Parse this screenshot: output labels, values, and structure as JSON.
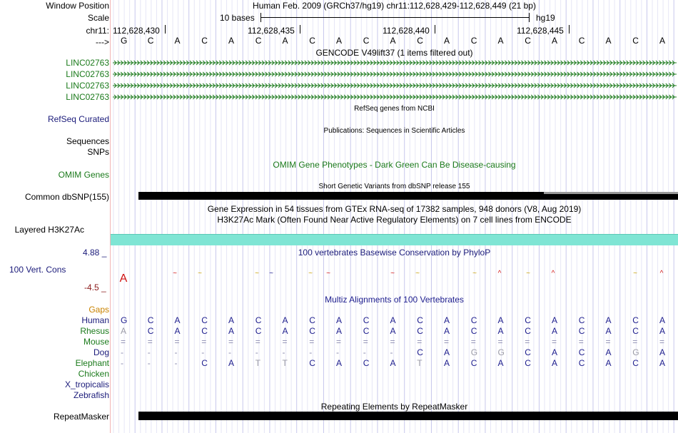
{
  "header": {
    "window_position_label": "Window Position",
    "window_position_value": "Human Feb. 2009 (GRCh37/hg19)   chr11:112,628,429-112,628,449 (21 bp)",
    "scale_label": "Scale",
    "scale_bases": "10 bases",
    "scale_assembly": "hg19",
    "chrom_label": "chr11:",
    "coords": [
      "112,628,430",
      "112,628,435",
      "112,628,440",
      "112,628,445"
    ],
    "strand_label": "--->",
    "bases": [
      "G",
      "C",
      "A",
      "C",
      "A",
      "C",
      "A",
      "C",
      "A",
      "C",
      "A",
      "C",
      "A",
      "C",
      "A",
      "C",
      "A",
      "C",
      "A",
      "C",
      "A"
    ]
  },
  "tracks": {
    "gencode": {
      "title": "GENCODE V49lift37 (1 items filtered out)",
      "genes": [
        "LINC02763",
        "LINC02763",
        "LINC02763",
        "LINC02763"
      ]
    },
    "refseq": {
      "label": "RefSeq Curated",
      "title": "RefSeq genes from NCBI"
    },
    "sequences": {
      "label": "Sequences",
      "title": "Publications: Sequences in Scientific Articles"
    },
    "snps": {
      "label": "SNPs"
    },
    "omim": {
      "label": "OMIM Genes",
      "title": "OMIM Gene Phenotypes - Dark Green Can Be Disease-causing"
    },
    "dbsnp": {
      "label": "Common dbSNP(155)",
      "title": "Short Genetic Variants from dbSNP release 155"
    },
    "gtex": {
      "title": "Gene Expression in 54 tissues from GTEx RNA-seq of 17382 samples, 948 donors (V8, Aug 2019)"
    },
    "h3k27ac": {
      "label": "Layered H3K27Ac",
      "title": "H3K27Ac Mark (Often Found Near Active Regulatory Elements) on 7 cell lines from ENCODE"
    },
    "cons": {
      "label": "100 Vert. Cons",
      "max": "4.88 _",
      "min": "-4.5 _",
      "title": "100 vertebrates Basewise Conservation by PhyloP"
    },
    "multiz": {
      "title": "Multiz Alignments of 100 Vertebrates",
      "gaps_label": "Gaps",
      "species": [
        {
          "name": "Human",
          "seq": [
            "G",
            "C",
            "A",
            "C",
            "A",
            "C",
            "A",
            "C",
            "A",
            "C",
            "A",
            "C",
            "A",
            "C",
            "A",
            "C",
            "A",
            "C",
            "A",
            "C",
            "A"
          ]
        },
        {
          "name": "Rhesus",
          "seq": [
            "A",
            "C",
            "A",
            "C",
            "A",
            "C",
            "A",
            "C",
            "A",
            "C",
            "A",
            "C",
            "A",
            "C",
            "A",
            "C",
            "A",
            "C",
            "A",
            "C",
            "A"
          ]
        },
        {
          "name": "Mouse",
          "seq": [
            "=",
            "=",
            "=",
            "=",
            "=",
            "=",
            "=",
            "=",
            "=",
            "=",
            "=",
            "=",
            "=",
            "=",
            "=",
            "=",
            "=",
            "=",
            "=",
            "=",
            "="
          ]
        },
        {
          "name": "Dog",
          "seq": [
            "-",
            "-",
            "-",
            "-",
            "-",
            "-",
            "-",
            "-",
            "-",
            "-",
            "-",
            "C",
            "A",
            "G",
            "G",
            "C",
            "A",
            "C",
            "A",
            "G",
            "A"
          ]
        },
        {
          "name": "Elephant",
          "seq": [
            "-",
            "-",
            "-",
            "C",
            "A",
            "T",
            "T",
            "C",
            "A",
            "C",
            "A",
            "T",
            "A",
            "C",
            "A",
            "C",
            "A",
            "C",
            "A",
            "C",
            "A"
          ]
        },
        {
          "name": "Chicken",
          "seq": []
        },
        {
          "name": "X_tropicalis",
          "seq": []
        },
        {
          "name": "Zebrafish",
          "seq": []
        }
      ]
    },
    "repeatmasker": {
      "label": "RepeatMasker",
      "title": "Repeating Elements by RepeatMasker"
    }
  },
  "colors": {
    "h3k27ac_fill": "#7fe5d4",
    "gene_green": "#1b7a1b",
    "label_navy": "#1b1b7a",
    "gap_orange": "#c98300",
    "base_blue": "#20208f"
  }
}
